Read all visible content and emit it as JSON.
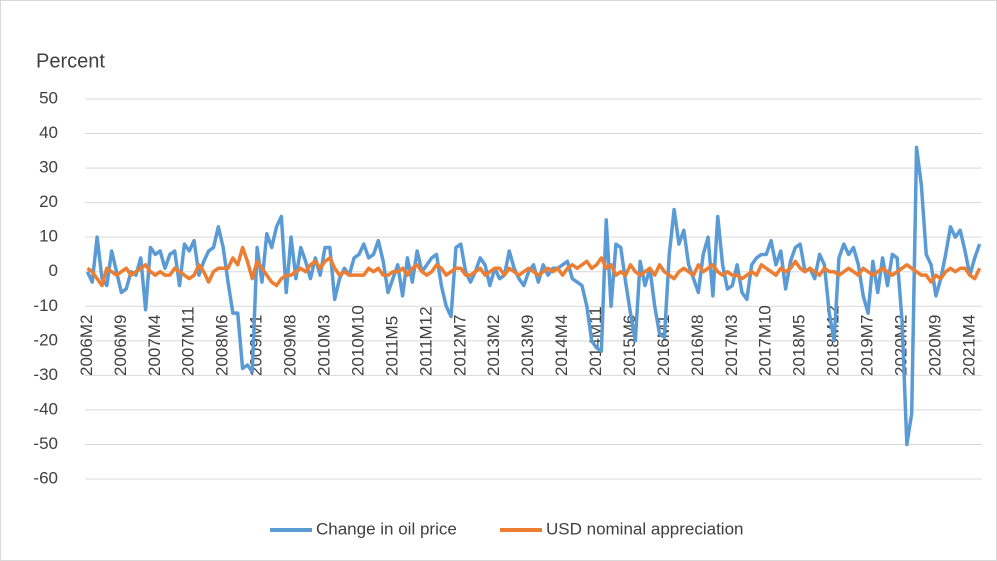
{
  "chart_data": {
    "type": "line",
    "y_axis_title": "Percent",
    "categories": [
      "2006M2",
      null,
      null,
      null,
      null,
      null,
      null,
      "2006M9",
      null,
      null,
      null,
      null,
      null,
      null,
      "2007M4",
      null,
      null,
      null,
      null,
      null,
      null,
      "2007M11",
      null,
      null,
      null,
      null,
      null,
      null,
      "2008M6",
      null,
      null,
      null,
      null,
      null,
      null,
      "2009M1",
      null,
      null,
      null,
      null,
      null,
      null,
      "2009M8",
      null,
      null,
      null,
      null,
      null,
      null,
      "2010M3",
      null,
      null,
      null,
      null,
      null,
      null,
      "2010M10",
      null,
      null,
      null,
      null,
      null,
      null,
      "2011M5",
      null,
      null,
      null,
      null,
      null,
      null,
      "2011M12",
      null,
      null,
      null,
      null,
      null,
      null,
      "2012M7",
      null,
      null,
      null,
      null,
      null,
      null,
      "2013M2",
      null,
      null,
      null,
      null,
      null,
      null,
      "2013M9",
      null,
      null,
      null,
      null,
      null,
      null,
      "2014M4",
      null,
      null,
      null,
      null,
      null,
      null,
      "2014M11",
      null,
      null,
      null,
      null,
      null,
      null,
      "2015M6",
      null,
      null,
      null,
      null,
      null,
      null,
      "2016M1",
      null,
      null,
      null,
      null,
      null,
      null,
      "2016M8",
      null,
      null,
      null,
      null,
      null,
      null,
      "2017M3",
      null,
      null,
      null,
      null,
      null,
      null,
      "2017M10",
      null,
      null,
      null,
      null,
      null,
      null,
      "2018M5",
      null,
      null,
      null,
      null,
      null,
      null,
      "2018M12",
      null,
      null,
      null,
      null,
      null,
      null,
      "2019M7",
      null,
      null,
      null,
      null,
      null,
      null,
      "2020M2",
      null,
      null,
      null,
      null,
      null,
      null,
      "2020M9",
      null,
      null,
      null,
      null,
      null,
      null,
      "2021M4",
      null,
      null
    ],
    "series": [
      {
        "name": "Change in oil price",
        "color": "#5b9bd5",
        "values": [
          0,
          -3,
          10,
          -2,
          -4,
          6,
          0,
          -6,
          -5,
          0,
          -1,
          4,
          -11,
          7,
          5,
          6,
          1,
          5,
          6,
          -4,
          8,
          6,
          9,
          -1,
          3,
          6,
          7,
          13,
          7,
          -3,
          -12,
          -12,
          -28,
          -27,
          -29,
          7,
          -3,
          11,
          7,
          13,
          16,
          -6,
          10,
          -2,
          7,
          3,
          -2,
          4,
          -1,
          7,
          7,
          -8,
          -2,
          1,
          -1,
          4,
          5,
          8,
          4,
          5,
          9,
          3,
          -6,
          -2,
          2,
          -7,
          4,
          -3,
          6,
          0,
          2,
          4,
          5,
          -4,
          -10,
          -13,
          7,
          8,
          0,
          -3,
          0,
          4,
          2,
          -4,
          1,
          -2,
          -1,
          6,
          1,
          -2,
          -4,
          0,
          2,
          -3,
          2,
          -1,
          1,
          1,
          2,
          3,
          -2,
          -3,
          -4,
          -10,
          -20,
          -22,
          -23,
          15,
          -10,
          8,
          7,
          -3,
          -12,
          -20,
          3,
          -4,
          1,
          -10,
          -18,
          -19,
          5,
          18,
          8,
          12,
          2,
          -2,
          -6,
          5,
          10,
          -7,
          16,
          2,
          -5,
          -4,
          2,
          -6,
          -8,
          2,
          4,
          5,
          5,
          9,
          2,
          6,
          -5,
          3,
          7,
          8,
          0,
          1,
          -2,
          5,
          2,
          -12,
          -20,
          4,
          8,
          5,
          7,
          2,
          -7,
          -12,
          3,
          -6,
          4,
          -4,
          5,
          4,
          -14,
          -50,
          -41,
          36,
          25,
          5,
          2,
          -7,
          -2,
          5,
          13,
          10,
          12,
          6,
          -1,
          4,
          8
        ]
      },
      {
        "name": "USD nominal appreciation",
        "color": "#ed7d31",
        "values": [
          1,
          0,
          -2,
          -4,
          1,
          0,
          -1,
          0,
          1,
          -1,
          0,
          1,
          2,
          0,
          -1,
          0,
          -1,
          -1,
          1,
          0,
          -1,
          -2,
          -1,
          2,
          0,
          -3,
          0,
          1,
          1,
          1,
          4,
          2,
          7,
          3,
          -2,
          3,
          1,
          -1,
          -3,
          -4,
          -2,
          -1,
          -1,
          0,
          1,
          0,
          2,
          3,
          1,
          3,
          4,
          1,
          -1,
          0,
          -1,
          -1,
          -1,
          -1,
          1,
          0,
          1,
          -1,
          -1,
          0,
          0,
          1,
          -1,
          1,
          2,
          0,
          -1,
          0,
          2,
          1,
          -1,
          0,
          1,
          1,
          -1,
          -1,
          0,
          1,
          -1,
          0,
          1,
          1,
          -1,
          1,
          0,
          -1,
          0,
          1,
          0,
          -1,
          0,
          1,
          0,
          1,
          -1,
          1,
          2,
          1,
          2,
          3,
          1,
          2,
          4,
          1,
          2,
          -1,
          0,
          -1,
          2,
          0,
          -1,
          0,
          1,
          -1,
          2,
          0,
          -1,
          -2,
          0,
          1,
          0,
          -1,
          2,
          0,
          1,
          2,
          0,
          -1,
          0,
          -1,
          -1,
          -2,
          -1,
          0,
          -1,
          2,
          1,
          0,
          -1,
          1,
          0,
          1,
          3,
          1,
          0,
          1,
          0,
          -1,
          1,
          0,
          0,
          -1,
          0,
          1,
          0,
          -1,
          1,
          0,
          -1,
          0,
          1,
          0,
          -1,
          0,
          1,
          2,
          1,
          0,
          -1,
          -1,
          -3,
          -1,
          -2,
          0,
          1,
          0,
          1,
          1,
          -1,
          -2,
          1
        ]
      }
    ],
    "ylim": [
      -60,
      50
    ],
    "yticks": [
      50,
      40,
      30,
      20,
      10,
      0,
      -10,
      -20,
      -30,
      -40,
      -50,
      -60
    ],
    "grid": true,
    "legend": "bottom"
  }
}
